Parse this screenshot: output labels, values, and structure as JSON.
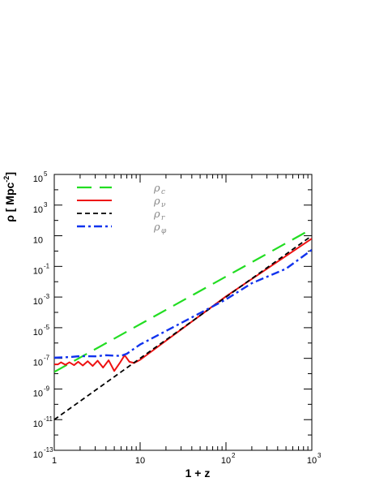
{
  "chart_data": {
    "type": "line",
    "x_scale": "log",
    "y_scale": "log",
    "xlim": [
      1,
      1000
    ],
    "ylim": [
      1e-13,
      100000.0
    ],
    "xlabel": "1 + z",
    "ylabel": "ρ [ Mpc",
    "ylabel_exp": "-2",
    "ylabel_close": "]",
    "x_ticks": [
      {
        "base": "1",
        "exp": "",
        "value": 1
      },
      {
        "base": "10",
        "exp": "",
        "value": 10
      },
      {
        "base": "10",
        "exp": "2",
        "value": 100
      },
      {
        "base": "10",
        "exp": "3",
        "value": 1000
      }
    ],
    "y_ticks": [
      {
        "base": "10",
        "exp": "5",
        "value": 100000.0
      },
      {
        "base": "10",
        "exp": "3",
        "value": 1000.0
      },
      {
        "base": "10",
        "exp": "",
        "value": 10
      },
      {
        "base": "10",
        "exp": "-1",
        "value": 0.1
      },
      {
        "base": "10",
        "exp": "-3",
        "value": 0.001
      },
      {
        "base": "10",
        "exp": "-5",
        "value": 1e-05
      },
      {
        "base": "10",
        "exp": "-7",
        "value": 1e-07
      },
      {
        "base": "10",
        "exp": "-9",
        "value": 1e-09
      },
      {
        "base": "10",
        "exp": "-11",
        "value": 1e-11
      },
      {
        "base": "10",
        "exp": "-13",
        "value": 1e-13
      }
    ],
    "legend_position": "top-left",
    "series": [
      {
        "name": "ρ",
        "sub": "c",
        "color": "#22dd22",
        "style": "long-dash",
        "points": [
          [
            1,
            1.3e-08
          ],
          [
            1000,
            28
          ]
        ]
      },
      {
        "name": "ρ",
        "sub": "ν",
        "color": "#ee1111",
        "style": "solid",
        "points": [
          [
            1,
            4e-08
          ],
          [
            1.1,
            4e-08
          ],
          [
            1.2,
            5.5e-08
          ],
          [
            1.35,
            3.8e-08
          ],
          [
            1.5,
            5.5e-08
          ],
          [
            1.7,
            3.6e-08
          ],
          [
            1.9,
            6e-08
          ],
          [
            2.15,
            3.4e-08
          ],
          [
            2.45,
            6.5e-08
          ],
          [
            2.8,
            3.2e-08
          ],
          [
            3.2,
            7e-08
          ],
          [
            3.7,
            2.5e-08
          ],
          [
            4.3,
            7.5e-08
          ],
          [
            5.0,
            1.5e-08
          ],
          [
            5.8,
            5e-08
          ],
          [
            6.6,
            1.6e-07
          ],
          [
            7.5,
            6e-08
          ],
          [
            8.5,
            5e-08
          ],
          [
            10,
            8e-08
          ],
          [
            100,
            0.0011
          ],
          [
            1000,
            6.5
          ]
        ]
      },
      {
        "name": "ρ",
        "sub": "r",
        "color": "#000000",
        "style": "short-dash",
        "points": [
          [
            1,
            1e-11
          ],
          [
            1000,
            10
          ]
        ]
      },
      {
        "name": "ρ",
        "sub": "φ",
        "color": "#1133ee",
        "style": "dash-dot",
        "points": [
          [
            1,
            1.1e-07
          ],
          [
            1.5,
            1.2e-07
          ],
          [
            2,
            1.4e-07
          ],
          [
            3,
            1.35e-07
          ],
          [
            4,
            1.6e-07
          ],
          [
            5,
            1.5e-07
          ],
          [
            6,
            1.45e-07
          ],
          [
            7,
            2e-07
          ],
          [
            10,
            8e-07
          ],
          [
            100,
            0.0007
          ],
          [
            200,
            0.008
          ],
          [
            500,
            0.07
          ],
          [
            1000,
            1.2
          ]
        ]
      }
    ]
  }
}
